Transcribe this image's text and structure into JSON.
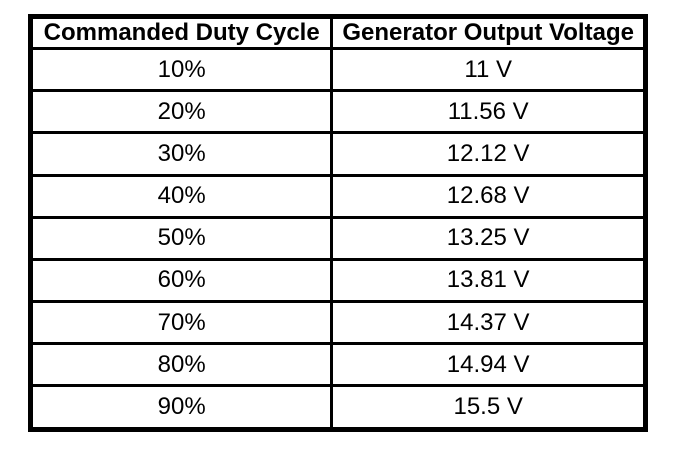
{
  "colors": {
    "border": "#000000",
    "background": "#ffffff",
    "text": "#000000"
  },
  "table": {
    "headers": [
      "Commanded Duty Cycle",
      "Generator Output Voltage"
    ],
    "rows": [
      [
        "10%",
        "11 V"
      ],
      [
        "20%",
        "11.56 V"
      ],
      [
        "30%",
        "12.12 V"
      ],
      [
        "40%",
        "12.68 V"
      ],
      [
        "50%",
        "13.25 V"
      ],
      [
        "60%",
        "13.81 V"
      ],
      [
        "70%",
        "14.37 V"
      ],
      [
        "80%",
        "14.94 V"
      ],
      [
        "90%",
        "15.5 V"
      ]
    ]
  },
  "chart_data": {
    "type": "table",
    "title": "",
    "columns": [
      "Commanded Duty Cycle",
      "Generator Output Voltage"
    ],
    "categories": [
      "10%",
      "20%",
      "30%",
      "40%",
      "50%",
      "60%",
      "70%",
      "80%",
      "90%"
    ],
    "values": [
      11,
      11.56,
      12.12,
      12.68,
      13.25,
      13.81,
      14.37,
      14.94,
      15.5
    ],
    "value_unit": "V",
    "xlabel": "Commanded Duty Cycle",
    "ylabel": "Generator Output Voltage"
  }
}
